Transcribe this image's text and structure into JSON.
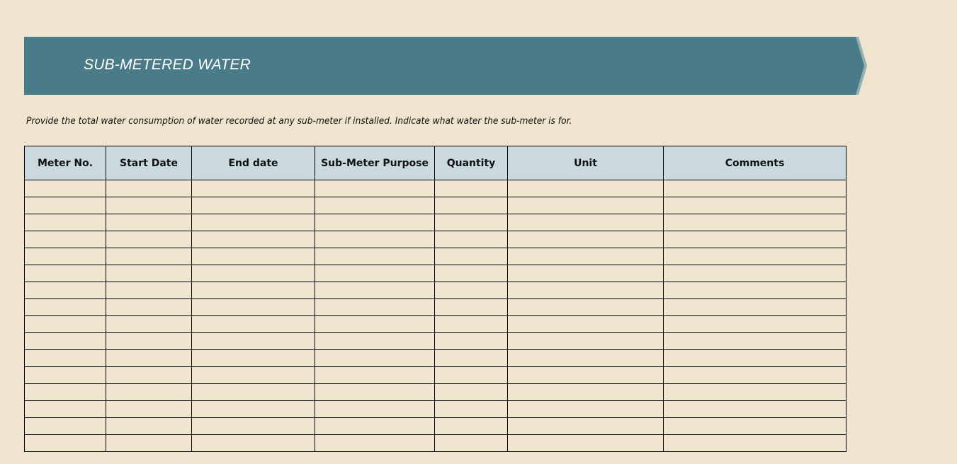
{
  "banner": {
    "title": "SUB-METERED WATER",
    "color": "#497c88"
  },
  "instructions": "Provide the total water consumption of water recorded at any sub-meter if installed. Indicate what water the sub-meter is for.",
  "table": {
    "headers": [
      "Meter No.",
      "Start Date",
      "End date",
      "Sub-Meter Purpose",
      "Quantity",
      "Unit",
      "Comments"
    ],
    "row_count": 16,
    "header_color": "#c9d9de"
  }
}
